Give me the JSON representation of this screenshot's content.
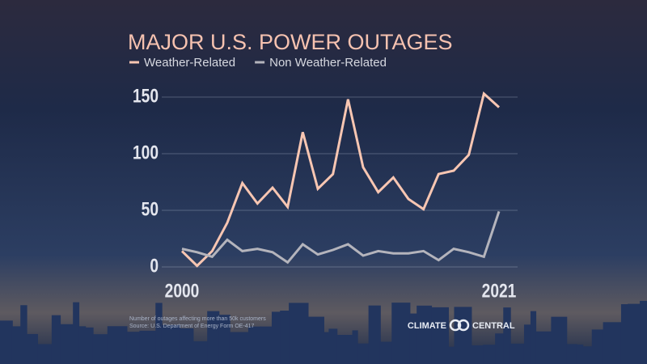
{
  "chart_data": {
    "type": "line",
    "title": "MAJOR U.S. POWER OUTAGES",
    "x": [
      2000,
      2001,
      2002,
      2003,
      2004,
      2005,
      2006,
      2007,
      2008,
      2009,
      2010,
      2011,
      2012,
      2013,
      2014,
      2015,
      2016,
      2017,
      2018,
      2019,
      2020,
      2021
    ],
    "xlim": [
      2000,
      2021
    ],
    "xticks": [
      2000,
      2021
    ],
    "ylim": [
      0,
      150
    ],
    "yticks": [
      0,
      50,
      100,
      150
    ],
    "grid": true,
    "legend": "top-left",
    "series": [
      {
        "name": "Weather-Related",
        "color": "#f8c6b2",
        "values": [
          14,
          1,
          14,
          39,
          74,
          56,
          70,
          53,
          119,
          69,
          82,
          148,
          88,
          66,
          79,
          60,
          51,
          82,
          85,
          99,
          153,
          141
        ]
      },
      {
        "name": "Non Weather-Related",
        "color": "#b4b4bc",
        "values": [
          16,
          13,
          9,
          24,
          14,
          16,
          13,
          4,
          20,
          11,
          15,
          20,
          10,
          14,
          12,
          12,
          14,
          6,
          16,
          13,
          9,
          49
        ]
      }
    ],
    "notes": [
      "Number of outages affecting more than 50k customers",
      "Source: U.S. Department of Energy Form OE-417"
    ],
    "brand": [
      "CLIMATE",
      "CENTRAL"
    ]
  }
}
